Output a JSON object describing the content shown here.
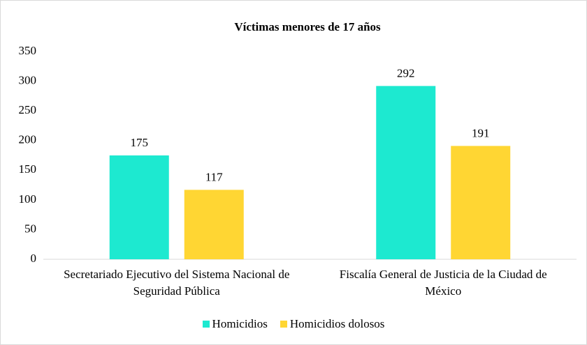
{
  "chart_data": {
    "type": "bar",
    "title": "Víctimas menores de 17 años",
    "categories": [
      "Secretariado Ejecutivo del Sistema Nacional de Seguridad Pública",
      "Fiscalía General de Justicia de la Ciudad de México"
    ],
    "series": [
      {
        "name": "Homicidios",
        "color": "#1de9d0",
        "values": [
          175,
          292
        ]
      },
      {
        "name": "Homicidios dolosos",
        "color": "#ffd633",
        "values": [
          117,
          191
        ]
      }
    ],
    "ylim": [
      0,
      350
    ],
    "yticks": [
      0,
      50,
      100,
      150,
      200,
      250,
      300,
      350
    ],
    "grid": false,
    "legend": "bottom"
  }
}
